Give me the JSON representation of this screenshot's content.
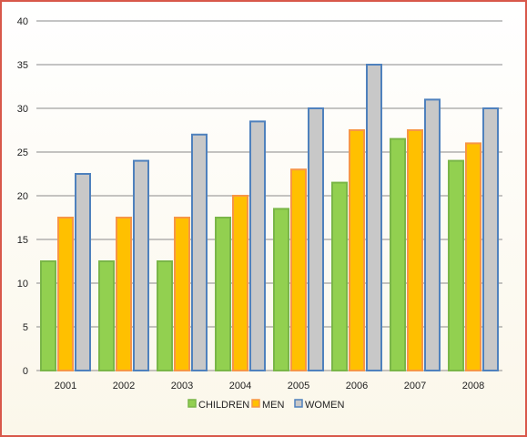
{
  "chart_data": {
    "type": "bar",
    "categories": [
      "2001",
      "2002",
      "2003",
      "2004",
      "2005",
      "2006",
      "2007",
      "2008"
    ],
    "series": [
      {
        "name": "CHILDREN",
        "values": [
          12.5,
          12.5,
          12.5,
          17.5,
          18.5,
          21.5,
          26.5,
          24
        ],
        "fill": "#92d050",
        "stroke": "#7ab648"
      },
      {
        "name": "MEN",
        "values": [
          17.5,
          17.5,
          17.5,
          20,
          23,
          27.5,
          27.5,
          26
        ],
        "fill": "#ffc000",
        "stroke": "#f79646"
      },
      {
        "name": "WOMEN",
        "values": [
          22.5,
          24,
          27,
          28.5,
          30,
          35,
          31,
          30
        ],
        "fill": "#c8c8c8",
        "stroke": "#4f81bd"
      }
    ],
    "ylim": [
      0,
      40
    ],
    "yticks": [
      "0",
      "5",
      "10",
      "15",
      "20",
      "25",
      "30",
      "35",
      "40"
    ],
    "grid": true,
    "legend_position": "bottom",
    "title": "",
    "xlabel": "",
    "ylabel": ""
  }
}
